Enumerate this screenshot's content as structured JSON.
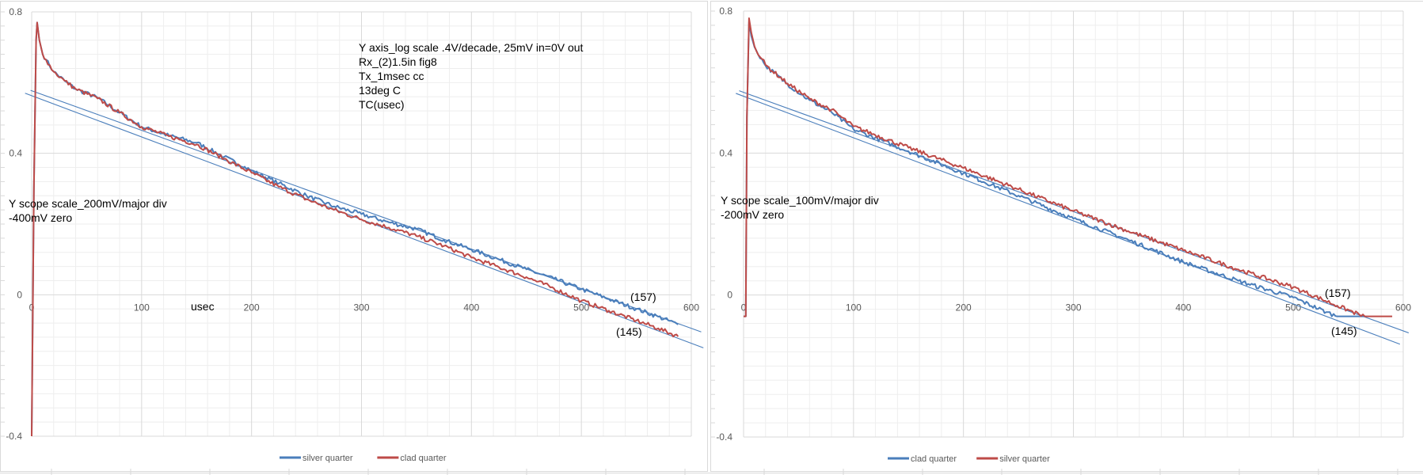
{
  "chart_data": [
    {
      "type": "line",
      "title": "",
      "xlabel": "usec",
      "ylabel": "",
      "xlim": [
        0,
        600
      ],
      "ylim": [
        -0.4,
        0.8
      ],
      "grid": true,
      "legend_position": "bottom",
      "x_tick_labels": [
        "0",
        "100",
        "200",
        "300",
        "400",
        "500",
        "600"
      ],
      "x_tick_values": [
        0,
        100,
        200,
        300,
        400,
        500,
        600
      ],
      "y_tick_labels": [
        "0.8",
        "0.4",
        "0",
        "-0.4"
      ],
      "y_tick_values": [
        0.8,
        0.4,
        0,
        -0.4
      ],
      "notes": [
        "Y axis_log scale .4V/decade, 25mV in=0V out",
        "Rx_(2)1.5in fig8",
        "Tx_1msec cc",
        "13deg C",
        "TC(usec)"
      ],
      "scope_notes": [
        "Y scope scale_200mV/major div",
        "-400mV zero"
      ],
      "tc_labels": [
        "(157)",
        "(145)"
      ],
      "series": [
        {
          "name": "silver quarter",
          "color": "#4a7ebb",
          "points": [
            [
              0,
              -0.4
            ],
            [
              2,
              0.3
            ],
            [
              4,
              0.72
            ],
            [
              5,
              0.77
            ],
            [
              7,
              0.72
            ],
            [
              10,
              0.68
            ],
            [
              13,
              0.665
            ],
            [
              20,
              0.631
            ],
            [
              30,
              0.605
            ],
            [
              40,
              0.582
            ],
            [
              60,
              0.557
            ],
            [
              80,
              0.515
            ],
            [
              100,
              0.475
            ],
            [
              125,
              0.45
            ],
            [
              150,
              0.43
            ],
            [
              175,
              0.39
            ],
            [
              200,
              0.351
            ],
            [
              225,
              0.315
            ],
            [
              250,
              0.28
            ],
            [
              275,
              0.25
            ],
            [
              300,
              0.228
            ],
            [
              325,
              0.205
            ],
            [
              350,
              0.186
            ],
            [
              375,
              0.155
            ],
            [
              400,
              0.128
            ],
            [
              425,
              0.1
            ],
            [
              450,
              0.072
            ],
            [
              475,
              0.045
            ],
            [
              500,
              0.016
            ],
            [
              525,
              -0.012
            ],
            [
              550,
              -0.04
            ],
            [
              570,
              -0.062
            ],
            [
              588,
              -0.084
            ]
          ]
        },
        {
          "name": "clad quarter",
          "color": "#be4b48",
          "points": [
            [
              0,
              -0.4
            ],
            [
              2,
              0.3
            ],
            [
              4,
              0.72
            ],
            [
              5,
              0.77
            ],
            [
              7,
              0.72
            ],
            [
              10,
              0.68
            ],
            [
              13,
              0.665
            ],
            [
              20,
              0.631
            ],
            [
              30,
              0.605
            ],
            [
              40,
              0.582
            ],
            [
              60,
              0.555
            ],
            [
              80,
              0.515
            ],
            [
              100,
              0.475
            ],
            [
              125,
              0.448
            ],
            [
              150,
              0.425
            ],
            [
              175,
              0.385
            ],
            [
              200,
              0.345
            ],
            [
              225,
              0.305
            ],
            [
              250,
              0.27
            ],
            [
              275,
              0.24
            ],
            [
              300,
              0.213
            ],
            [
              325,
              0.19
            ],
            [
              350,
              0.166
            ],
            [
              375,
              0.138
            ],
            [
              400,
              0.105
            ],
            [
              425,
              0.078
            ],
            [
              450,
              0.05
            ],
            [
              475,
              0.018
            ],
            [
              500,
              -0.017
            ],
            [
              525,
              -0.045
            ],
            [
              550,
              -0.073
            ],
            [
              570,
              -0.095
            ],
            [
              588,
              -0.118
            ]
          ]
        }
      ],
      "trendlines": [
        {
          "series": "silver quarter",
          "intercept": 0.577,
          "slope": -0.00112,
          "x_range": [
            -1,
            609
          ],
          "color": "#4a7ebb"
        },
        {
          "series": "clad quarter",
          "intercept": 0.563,
          "slope": -0.001167,
          "x_range": [
            -6,
            611
          ],
          "color": "#4a7ebb"
        }
      ]
    },
    {
      "type": "line",
      "title": "",
      "xlabel": "",
      "ylabel": "",
      "xlim": [
        0,
        600
      ],
      "ylim": [
        -0.4,
        0.8
      ],
      "grid": true,
      "legend_position": "bottom",
      "x_tick_labels": [
        "0",
        "100",
        "200",
        "300",
        "400",
        "500",
        "600"
      ],
      "x_tick_values": [
        0,
        100,
        200,
        300,
        400,
        500,
        600
      ],
      "y_tick_labels": [
        "0.8",
        "0.4",
        "0",
        "-0.4"
      ],
      "y_tick_values": [
        0.8,
        0.4,
        0,
        -0.4
      ],
      "notes": [],
      "scope_notes": [
        "Y scope scale_100mV/major div",
        "-200mV zero"
      ],
      "tc_labels": [
        "(157)",
        "(145)"
      ],
      "series": [
        {
          "name": "clad quarter",
          "color": "#4a7ebb",
          "points": [
            [
              0,
              -0.06
            ],
            [
              2,
              -0.06
            ],
            [
              3,
              0.5
            ],
            [
              5,
              0.77
            ],
            [
              7,
              0.73
            ],
            [
              10,
              0.698
            ],
            [
              20,
              0.646
            ],
            [
              40,
              0.594
            ],
            [
              60,
              0.549
            ],
            [
              80,
              0.515
            ],
            [
              100,
              0.467
            ],
            [
              150,
              0.405
            ],
            [
              200,
              0.343
            ],
            [
              250,
              0.28
            ],
            [
              300,
              0.215
            ],
            [
              350,
              0.155
            ],
            [
              400,
              0.093
            ],
            [
              450,
              0.04
            ],
            [
              500,
              -0.007
            ],
            [
              530,
              -0.048
            ],
            [
              540,
              -0.06
            ],
            [
              565,
              -0.06
            ]
          ]
        },
        {
          "name": "silver  quarter",
          "color": "#be4b48",
          "points": [
            [
              0,
              -0.06
            ],
            [
              2,
              -0.06
            ],
            [
              3,
              0.5
            ],
            [
              5,
              0.78
            ],
            [
              7,
              0.74
            ],
            [
              10,
              0.7
            ],
            [
              20,
              0.648
            ],
            [
              40,
              0.596
            ],
            [
              60,
              0.553
            ],
            [
              80,
              0.522
            ],
            [
              100,
              0.475
            ],
            [
              150,
              0.415
            ],
            [
              200,
              0.358
            ],
            [
              250,
              0.298
            ],
            [
              300,
              0.237
            ],
            [
              350,
              0.18
            ],
            [
              400,
              0.126
            ],
            [
              450,
              0.072
            ],
            [
              500,
              0.022
            ],
            [
              540,
              -0.03
            ],
            [
              560,
              -0.055
            ],
            [
              565,
              -0.06
            ],
            [
              590,
              -0.06
            ]
          ]
        }
      ],
      "trendlines": [
        {
          "series": "silver  quarter",
          "intercept": 0.571,
          "slope": -0.00112,
          "x_range": [
            -4,
            605
          ],
          "color": "#4a7ebb"
        },
        {
          "series": "clad quarter",
          "intercept": 0.56,
          "slope": -0.00117,
          "x_range": [
            -7,
            597
          ],
          "color": "#4a7ebb"
        }
      ]
    }
  ]
}
